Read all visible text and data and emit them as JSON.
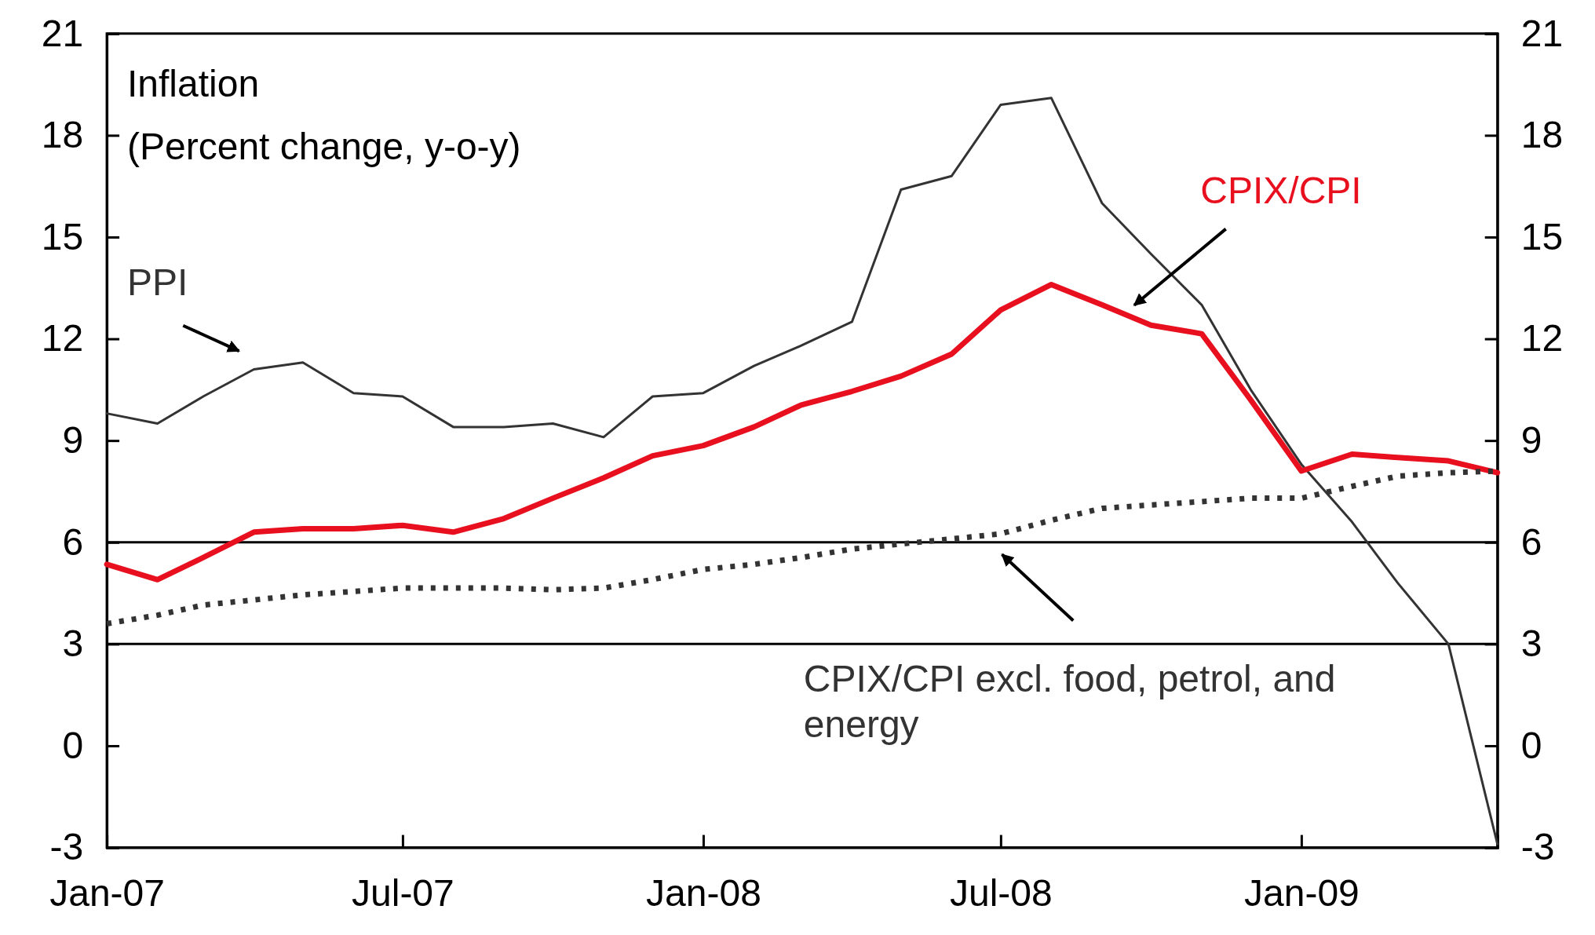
{
  "chart_data": {
    "type": "line",
    "title": "Inflation",
    "subtitle": "(Percent change, y-o-y)",
    "x": [
      "2007-01",
      "2007-02",
      "2007-03",
      "2007-04",
      "2007-05",
      "2007-06",
      "2007-07",
      "2007-08",
      "2007-09",
      "2007-10",
      "2007-11",
      "2007-12",
      "2008-01",
      "2008-02",
      "2008-03",
      "2008-04",
      "2008-05",
      "2008-06",
      "2008-07",
      "2008-08",
      "2008-09",
      "2008-10",
      "2008-11",
      "2008-12",
      "2009-01",
      "2009-02",
      "2009-03",
      "2009-04",
      "2009-05"
    ],
    "series": [
      {
        "name": "PPI",
        "color": "#333333",
        "line_style": "solid",
        "values": [
          9.8,
          9.5,
          10.3,
          11.1,
          11.3,
          10.4,
          10.3,
          9.4,
          9.4,
          9.5,
          9.1,
          10.3,
          10.4,
          11.2,
          11.8,
          12.5,
          16.4,
          16.8,
          18.9,
          19.1,
          16.0,
          14.5,
          13.0,
          10.5,
          8.3,
          6.6,
          4.8,
          3.0,
          -2.9
        ]
      },
      {
        "name": "CPIX/CPI",
        "color": "#e8101e",
        "line_style": "solid",
        "values": [
          5.35,
          4.9,
          5.55,
          6.3,
          6.4,
          6.4,
          6.5,
          6.3,
          6.7,
          7.3,
          7.9,
          8.55,
          8.85,
          9.4,
          10.05,
          10.45,
          10.9,
          11.55,
          12.85,
          13.6,
          13.0,
          12.4,
          12.15,
          10.2,
          8.1,
          8.6,
          8.5,
          8.4,
          8.05
        ]
      },
      {
        "name": "CPIX/CPI excl. food, petrol, and energy",
        "color": "#333333",
        "line_style": "dotted",
        "values": [
          3.6,
          3.85,
          4.15,
          4.3,
          4.45,
          4.55,
          4.65,
          4.65,
          4.65,
          4.6,
          4.65,
          4.9,
          5.2,
          5.35,
          5.55,
          5.8,
          5.95,
          6.1,
          6.25,
          6.65,
          7.0,
          7.1,
          7.2,
          7.3,
          7.3,
          7.65,
          7.95,
          8.05,
          8.1
        ]
      }
    ],
    "xlim": [
      "2007-01",
      "2009-05"
    ],
    "xticks": [
      {
        "value": "2007-01",
        "label": "Jan-07"
      },
      {
        "value": "2007-07",
        "label": "Jul-07"
      },
      {
        "value": "2008-01",
        "label": "Jan-08"
      },
      {
        "value": "2008-07",
        "label": "Jul-08"
      },
      {
        "value": "2009-01",
        "label": "Jan-09"
      }
    ],
    "ylim": [
      -3,
      21
    ],
    "yticks": [
      -3,
      0,
      3,
      6,
      9,
      12,
      15,
      18,
      21
    ],
    "y2lim": [
      -3,
      21
    ],
    "y2ticks": [
      -3,
      0,
      3,
      6,
      9,
      12,
      15,
      18,
      21
    ],
    "ref_lines": [
      {
        "axis": "y",
        "value": 3,
        "color": "#000000"
      },
      {
        "axis": "y",
        "value": 6,
        "color": "#000000"
      }
    ],
    "grid": false,
    "marker": "none"
  }
}
